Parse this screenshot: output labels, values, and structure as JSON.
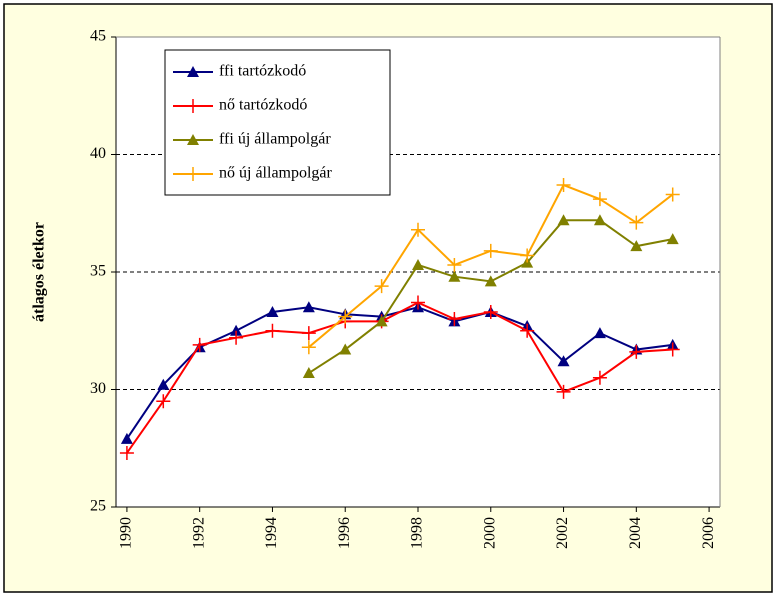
{
  "chart_data": {
    "type": "line",
    "y_label": "átlagos életkor",
    "x": [
      1990,
      1991,
      1992,
      1993,
      1994,
      1995,
      1996,
      1997,
      1998,
      1999,
      2000,
      2001,
      2002,
      2003,
      2004,
      2005
    ],
    "series": [
      {
        "name": "ffi tartózkodó",
        "color": "#000080",
        "marker": "triangle",
        "values": [
          27.9,
          30.2,
          31.8,
          32.5,
          33.3,
          33.5,
          33.2,
          33.1,
          33.5,
          32.9,
          33.3,
          32.7,
          31.2,
          32.4,
          31.7,
          31.9
        ]
      },
      {
        "name": "nő tartózkodó",
        "color": "#ff0000",
        "marker": "plus",
        "values": [
          27.3,
          29.5,
          31.9,
          32.2,
          32.5,
          32.4,
          32.9,
          32.9,
          33.7,
          33.0,
          33.3,
          32.5,
          29.9,
          30.5,
          31.6,
          31.7
        ]
      },
      {
        "name": "ffi új állampolgár",
        "color": "#808000",
        "marker": "triangle",
        "values": [
          null,
          null,
          null,
          null,
          null,
          30.7,
          31.7,
          32.9,
          35.3,
          34.8,
          34.6,
          35.4,
          37.2,
          37.2,
          36.1,
          36.4
        ]
      },
      {
        "name": "nő új állampolgár",
        "color": "#ffa500",
        "marker": "plus",
        "values": [
          null,
          null,
          null,
          null,
          null,
          31.8,
          33.1,
          34.4,
          36.8,
          35.3,
          35.9,
          35.7,
          38.7,
          38.1,
          37.1,
          38.3
        ]
      }
    ],
    "xlim": [
      1989.7,
      2006.3
    ],
    "xticks": [
      1990,
      1992,
      1994,
      1996,
      1998,
      2000,
      2002,
      2004,
      2006
    ],
    "ylim": [
      25,
      45
    ],
    "yticks": [
      25,
      30,
      35,
      40,
      45
    ],
    "grid": true,
    "legend": "upper left"
  }
}
